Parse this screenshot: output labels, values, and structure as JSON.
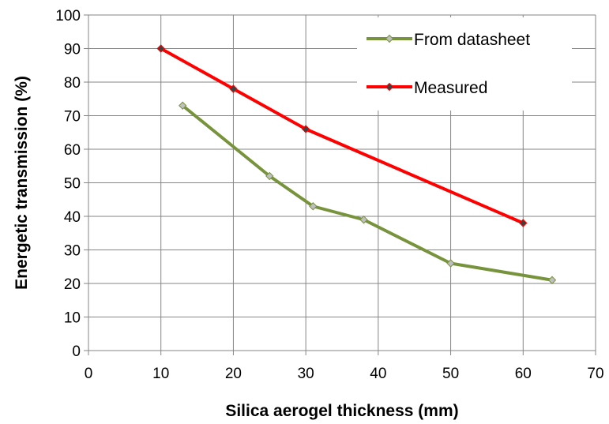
{
  "chart_data": {
    "type": "line",
    "title": "",
    "xlabel": "Silica aerogel thickness (mm)",
    "ylabel": "Energetic transmission (%)",
    "xlim": [
      0,
      70
    ],
    "ylim": [
      0,
      100
    ],
    "xticks": [
      0,
      10,
      20,
      30,
      40,
      50,
      60,
      70
    ],
    "yticks": [
      0,
      10,
      20,
      30,
      40,
      50,
      60,
      70,
      80,
      90,
      100
    ],
    "grid": true,
    "legend_position": "top-right",
    "series": [
      {
        "name": "From datasheet",
        "color": "#77933C",
        "marker_color": "#BFBFBF",
        "x": [
          13,
          25,
          31,
          38,
          50,
          64
        ],
        "y": [
          73,
          52,
          43,
          39,
          26,
          21
        ]
      },
      {
        "name": "Measured",
        "color": "#FF0000",
        "marker_color": "#404040",
        "x": [
          10,
          20,
          30,
          60
        ],
        "y": [
          90,
          78,
          66,
          38
        ]
      }
    ]
  }
}
